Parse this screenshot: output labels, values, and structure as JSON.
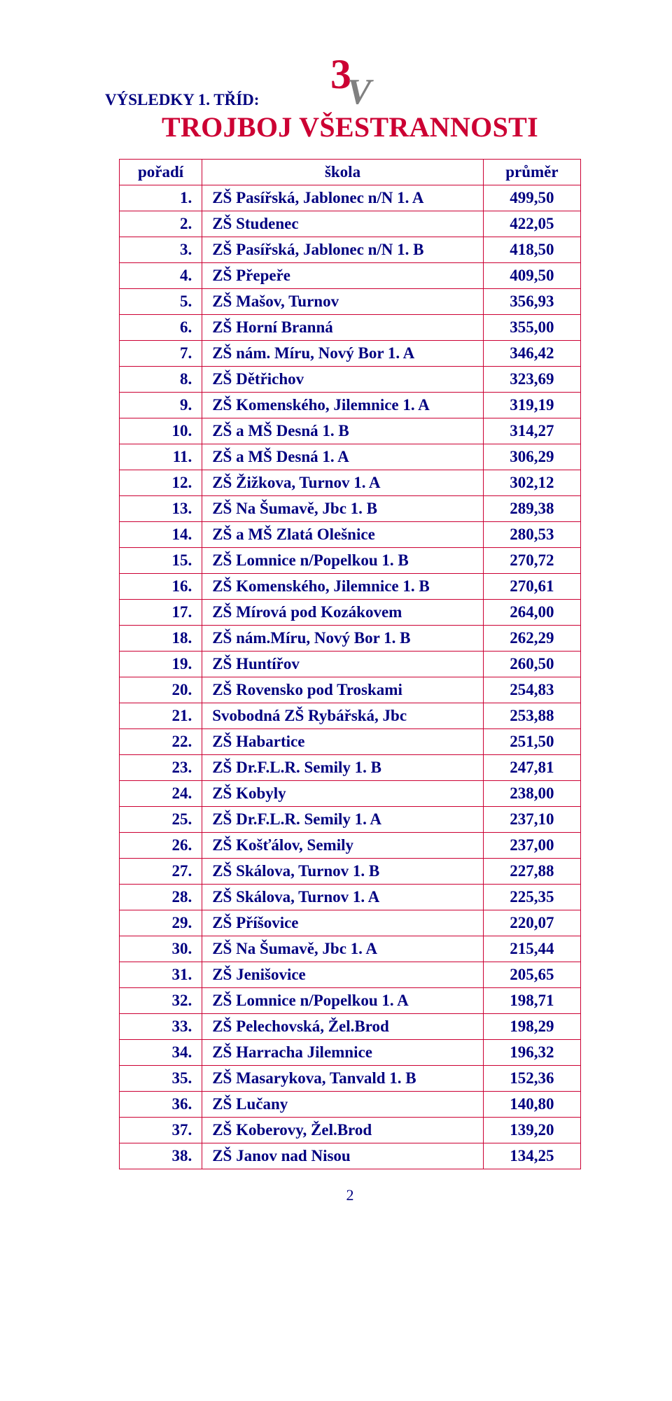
{
  "logo": {
    "three_color": "#cc0033",
    "v_color": "#808080"
  },
  "title": "TROJBOJ VŠESTRANNOSTI",
  "subhead": "VÝSLEDKY 1. TŘÍD:",
  "table": {
    "headers": {
      "rank": "pořadí",
      "school": "škola",
      "avg": "průměr"
    },
    "border_color": "#cc0033",
    "text_color": "#000080",
    "rows": [
      {
        "rank": "1.",
        "school": "ZŠ Pasířská, Jablonec n/N 1. A",
        "avg": "499,50"
      },
      {
        "rank": "2.",
        "school": "ZŠ Studenec",
        "avg": "422,05"
      },
      {
        "rank": "3.",
        "school": "ZŠ Pasířská, Jablonec n/N 1. B",
        "avg": "418,50"
      },
      {
        "rank": "4.",
        "school": "ZŠ Přepeře",
        "avg": "409,50"
      },
      {
        "rank": "5.",
        "school": "ZŠ Mašov, Turnov",
        "avg": "356,93"
      },
      {
        "rank": "6.",
        "school": "ZŠ Horní Branná",
        "avg": "355,00"
      },
      {
        "rank": "7.",
        "school": "ZŠ nám. Míru, Nový Bor 1. A",
        "avg": "346,42"
      },
      {
        "rank": "8.",
        "school": "ZŠ Dětřichov",
        "avg": "323,69"
      },
      {
        "rank": "9.",
        "school": "ZŠ Komenského, Jilemnice 1. A",
        "avg": "319,19"
      },
      {
        "rank": "10.",
        "school": "ZŠ a MŠ Desná 1. B",
        "avg": "314,27"
      },
      {
        "rank": "11.",
        "school": "ZŠ a MŠ Desná 1. A",
        "avg": "306,29"
      },
      {
        "rank": "12.",
        "school": "ZŠ Žižkova, Turnov 1. A",
        "avg": "302,12"
      },
      {
        "rank": "13.",
        "school": "ZŠ Na Šumavě, Jbc  1. B",
        "avg": "289,38"
      },
      {
        "rank": "14.",
        "school": "ZŠ a MŠ Zlatá Olešnice",
        "avg": "280,53"
      },
      {
        "rank": "15.",
        "school": "ZŠ Lomnice n/Popelkou 1. B",
        "avg": "270,72"
      },
      {
        "rank": "16.",
        "school": "ZŠ Komenského, Jilemnice 1. B",
        "avg": "270,61"
      },
      {
        "rank": "17.",
        "school": "ZŠ Mírová pod Kozákovem",
        "avg": "264,00"
      },
      {
        "rank": "18.",
        "school": "ZŠ nám.Míru, Nový Bor  1. B",
        "avg": "262,29"
      },
      {
        "rank": "19.",
        "school": "ZŠ Huntířov",
        "avg": "260,50"
      },
      {
        "rank": "20.",
        "school": "ZŠ Rovensko pod Troskami",
        "avg": "254,83"
      },
      {
        "rank": "21.",
        "school": "Svobodná ZŠ Rybářská, Jbc",
        "avg": "253,88"
      },
      {
        "rank": "22.",
        "school": "ZŠ Habartice",
        "avg": "251,50"
      },
      {
        "rank": "23.",
        "school": "ZŠ Dr.F.L.R. Semily 1. B",
        "avg": "247,81"
      },
      {
        "rank": "24.",
        "school": "ZŠ Kobyly",
        "avg": "238,00"
      },
      {
        "rank": "25.",
        "school": "ZŠ Dr.F.L.R. Semily 1. A",
        "avg": "237,10"
      },
      {
        "rank": "26.",
        "school": "ZŠ Košťálov, Semily",
        "avg": "237,00"
      },
      {
        "rank": "27.",
        "school": "ZŠ Skálova, Turnov 1. B",
        "avg": "227,88"
      },
      {
        "rank": "28.",
        "school": "ZŠ Skálova, Turnov 1. A",
        "avg": "225,35"
      },
      {
        "rank": "29.",
        "school": "ZŠ Příšovice",
        "avg": "220,07"
      },
      {
        "rank": "30.",
        "school": "ZŠ Na Šumavě, Jbc  1. A",
        "avg": "215,44"
      },
      {
        "rank": "31.",
        "school": "ZŠ Jenišovice",
        "avg": "205,65"
      },
      {
        "rank": "32.",
        "school": "ZŠ Lomnice n/Popelkou 1. A",
        "avg": "198,71"
      },
      {
        "rank": "33.",
        "school": "ZŠ Pelechovská, Žel.Brod",
        "avg": "198,29"
      },
      {
        "rank": "34.",
        "school": "ZŠ Harracha Jilemnice",
        "avg": "196,32"
      },
      {
        "rank": "35.",
        "school": "ZŠ Masarykova, Tanvald 1. B",
        "avg": "152,36"
      },
      {
        "rank": "36.",
        "school": "ZŠ Lučany",
        "avg": "140,80"
      },
      {
        "rank": "37.",
        "school": "ZŠ Koberovy, Žel.Brod",
        "avg": "139,20"
      },
      {
        "rank": "38.",
        "school": "ZŠ Janov nad Nisou",
        "avg": "134,25"
      }
    ]
  },
  "page_number": "2"
}
